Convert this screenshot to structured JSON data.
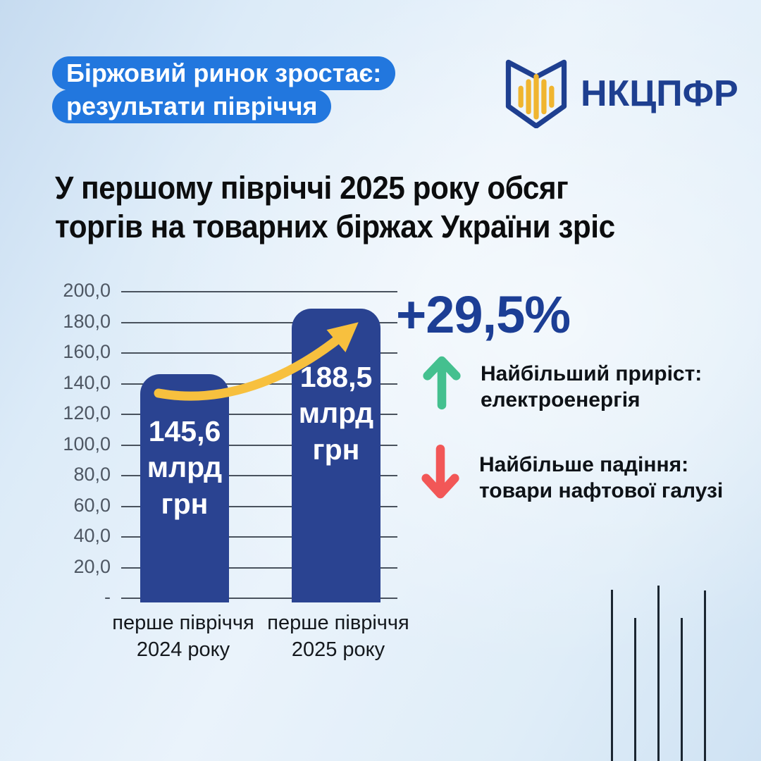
{
  "header": {
    "badge_line1": "Біржовий ринок зростає:",
    "badge_line2": "результати півріччя",
    "logo_text": "НКЦПФР"
  },
  "title": {
    "line1": "У першому півріччі 2025 року обсяг",
    "line2": "торгів на товарних біржах України зріс"
  },
  "chart_data": {
    "type": "bar",
    "title": "Обсяг торгів на товарних біржах України",
    "unit": "млрд грн",
    "categories": [
      [
        "перше півріччя",
        "2024 року"
      ],
      [
        "перше півріччя",
        "2025 року"
      ]
    ],
    "values": [
      145.6,
      188.5
    ],
    "value_labels": [
      [
        "145,6",
        "млрд",
        "грн"
      ],
      [
        "188,5",
        "млрд",
        "грн"
      ]
    ],
    "ylim": [
      0,
      200
    ],
    "ytick_step": 20,
    "ytick_labels": [
      "200,0",
      "180,0",
      "160,0",
      "140,0",
      "120,0",
      "100,0",
      "80,0",
      "60,0",
      "40,0",
      "20,0",
      "-"
    ],
    "grid": true,
    "growth_label": "+29,5%",
    "annotation": "жовта стрілка зростання між стовпцями"
  },
  "highlights": [
    {
      "icon": "arrow-up",
      "line1": "Найбільший приріст:",
      "line2": "електроенергія"
    },
    {
      "icon": "arrow-down",
      "line1": "Найбільше падіння:",
      "line2": "товари нафтової галузі"
    }
  ],
  "colors": {
    "badge_blue": "#2277de",
    "bar_navy": "#2a4391",
    "growth_navy": "#1c3e95",
    "trend_yellow": "#f7c03e",
    "up_green": "#44c08f",
    "down_red": "#f25757",
    "logo_navy": "#1e3f90",
    "logo_yellow": "#f0b52f",
    "gridline_gray": "#49525d"
  }
}
